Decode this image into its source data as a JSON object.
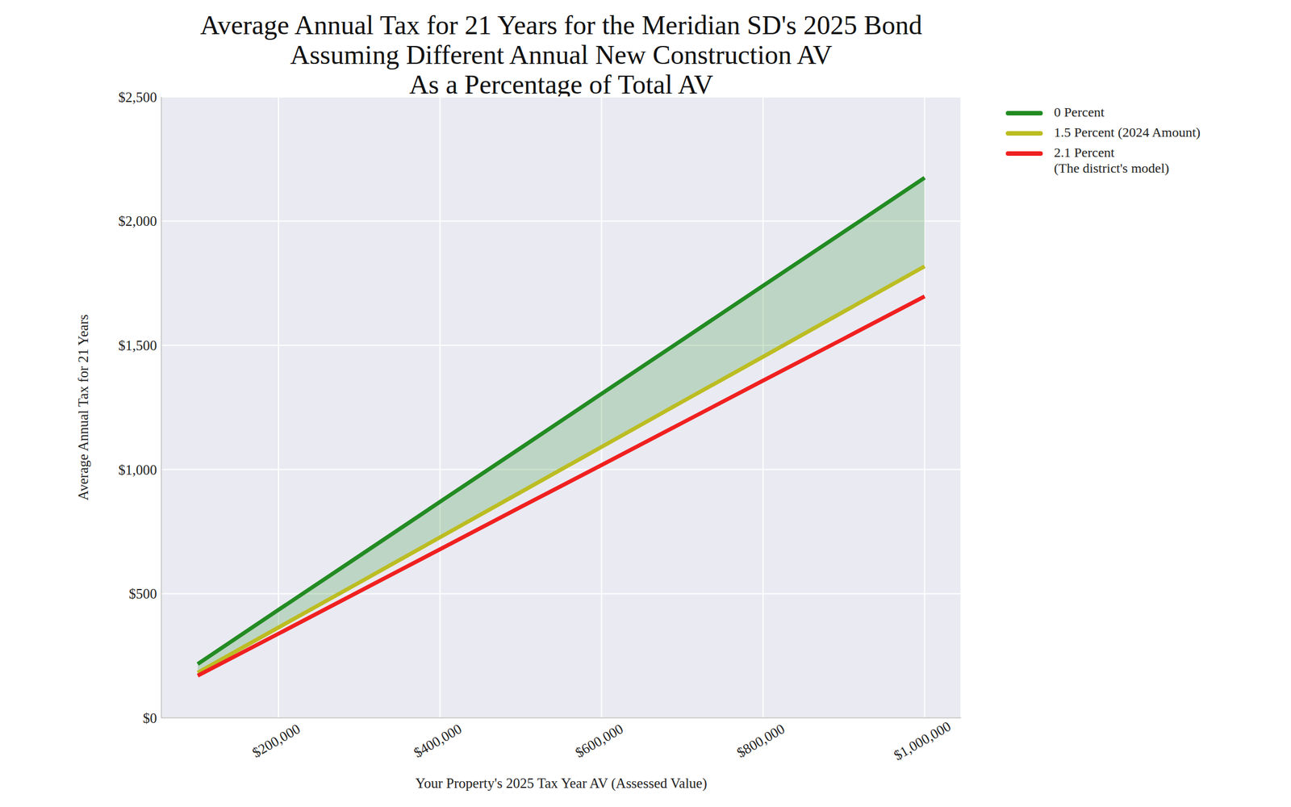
{
  "chart_data": {
    "type": "line",
    "title": "Average Annual Tax for 21 Years for the Meridian SD's 2025 Bond\nAssuming Different Annual New Construction AV\nAs a Percentage of Total AV",
    "x_label": "Your Property's 2025 Tax Year AV (Assessed Value)",
    "y_label": "Average Annual Tax for 21 Years",
    "x": [
      100000,
      200000,
      300000,
      400000,
      500000,
      600000,
      700000,
      800000,
      900000,
      1000000
    ],
    "series": [
      {
        "name": "0 Percent",
        "color": "#228b22",
        "values": [
          217,
          435,
          652,
          870,
          1087,
          1305,
          1522,
          1740,
          1957,
          2175
        ]
      },
      {
        "name": "1.5 Percent (2024 Amount)",
        "color": "#bcbd22",
        "values": [
          182,
          364,
          545,
          727,
          909,
          1091,
          1273,
          1454,
          1636,
          1818
        ]
      },
      {
        "name": "2.1 Percent\n(The district's model)",
        "color": "#f02020",
        "values": [
          170,
          339,
          509,
          679,
          849,
          1018,
          1188,
          1358,
          1527,
          1697
        ]
      }
    ],
    "xlim": [
      55000,
      1045000
    ],
    "xticks": [
      {
        "value": 200000,
        "label": "$200,000"
      },
      {
        "value": 400000,
        "label": "$400,000"
      },
      {
        "value": 600000,
        "label": "$600,000"
      },
      {
        "value": 800000,
        "label": "$800,000"
      },
      {
        "value": 1000000,
        "label": "$1,000,000"
      }
    ],
    "ylim": [
      0,
      2500
    ],
    "yticks": [
      {
        "value": 0,
        "label": "$0"
      },
      {
        "value": 500,
        "label": "$500"
      },
      {
        "value": 1000,
        "label": "$1,000"
      },
      {
        "value": 1500,
        "label": "$1,500"
      },
      {
        "value": 2000,
        "label": "$2,000"
      },
      {
        "value": 2500,
        "label": "$2,500"
      }
    ],
    "grid": true,
    "legend": "right"
  }
}
